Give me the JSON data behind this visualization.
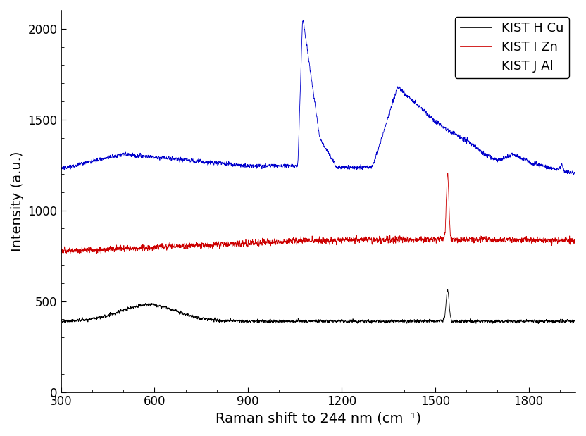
{
  "title": "",
  "xlabel": "Raman shift to 244 nm (cm⁻¹)",
  "ylabel": "Intensity (a.u.)",
  "xlim": [
    300,
    1950
  ],
  "ylim": [
    0,
    2100
  ],
  "xticks": [
    300,
    600,
    900,
    1200,
    1500,
    1800
  ],
  "yticks": [
    0,
    500,
    1000,
    1500,
    2000
  ],
  "legend": [
    "KIST H Cu",
    "KIST I Zn",
    "KIST J Al"
  ],
  "colors": [
    "#000000",
    "#cc0000",
    "#0000cc"
  ],
  "seed": 42,
  "black_baseline": 390,
  "red_baseline": 775,
  "blue_baseline": 1230
}
